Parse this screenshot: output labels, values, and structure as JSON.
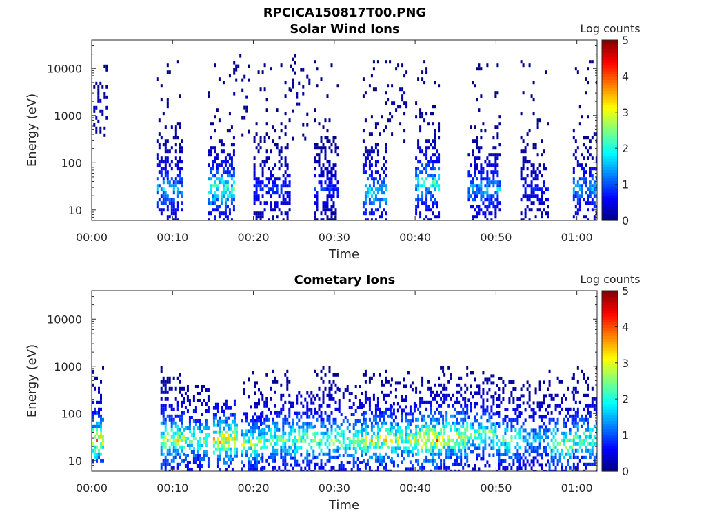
{
  "figure": {
    "title": "RPCICA150817T00.PNG"
  },
  "chart_data": [
    {
      "type": "heatmap",
      "title": "Solar Wind Ions",
      "xlabel": "Time",
      "ylabel": "Energy (eV)",
      "x_ticks": [
        "00:00",
        "00:10",
        "00:20",
        "00:30",
        "00:40",
        "00:50",
        "01:00"
      ],
      "x_range_min": [
        0,
        62.5
      ],
      "y_scale": "log",
      "y_ticks": [
        "10",
        "100",
        "1000",
        "10000"
      ],
      "y_range": [
        6,
        40000
      ],
      "colorbar": {
        "label": "Log counts",
        "range": [
          0,
          5
        ],
        "ticks": [
          "0",
          "1",
          "2",
          "3",
          "4",
          "5"
        ],
        "colormap": "jet"
      },
      "legend": "none",
      "grid": false,
      "bursts": [
        {
          "start_min": 0.2,
          "end_min": 1.8,
          "e_low": 300,
          "e_high": 12000,
          "peak_e": 1500,
          "peak_log": 0.4,
          "density": 0.35
        },
        {
          "start_min": 8.0,
          "end_min": 11.3,
          "e_low": 6,
          "e_high": 15000,
          "peak_e": 30,
          "peak_log": 1.9,
          "density": 0.62
        },
        {
          "start_min": 14.4,
          "end_min": 17.5,
          "e_low": 6,
          "e_high": 15000,
          "peak_e": 30,
          "peak_log": 2.7,
          "density": 0.62
        },
        {
          "start_min": 17.5,
          "end_min": 19.5,
          "e_low": 300,
          "e_high": 20000,
          "peak_e": 3000,
          "peak_log": 0.3,
          "density": 0.15
        },
        {
          "start_min": 20.0,
          "end_min": 24.5,
          "e_low": 6,
          "e_high": 15000,
          "peak_e": 30,
          "peak_log": 1.0,
          "density": 0.55
        },
        {
          "start_min": 24.5,
          "end_min": 27.0,
          "e_low": 300,
          "e_high": 20000,
          "peak_e": 3000,
          "peak_log": 0.3,
          "density": 0.15
        },
        {
          "start_min": 27.5,
          "end_min": 30.5,
          "e_low": 6,
          "e_high": 15000,
          "peak_e": 30,
          "peak_log": 1.0,
          "density": 0.6
        },
        {
          "start_min": 33.5,
          "end_min": 36.5,
          "e_low": 6,
          "e_high": 15000,
          "peak_e": 25,
          "peak_log": 2.2,
          "density": 0.6
        },
        {
          "start_min": 36.5,
          "end_min": 39.0,
          "e_low": 300,
          "e_high": 15000,
          "peak_e": 3000,
          "peak_log": 0.3,
          "density": 0.15
        },
        {
          "start_min": 40.0,
          "end_min": 43.0,
          "e_low": 6,
          "e_high": 15000,
          "peak_e": 40,
          "peak_log": 2.6,
          "density": 0.62
        },
        {
          "start_min": 46.5,
          "end_min": 50.5,
          "e_low": 6,
          "e_high": 15000,
          "peak_e": 30,
          "peak_log": 1.8,
          "density": 0.55
        },
        {
          "start_min": 53.0,
          "end_min": 56.5,
          "e_low": 6,
          "e_high": 15000,
          "peak_e": 30,
          "peak_log": 0.8,
          "density": 0.5
        },
        {
          "start_min": 59.5,
          "end_min": 62.5,
          "e_low": 6,
          "e_high": 15000,
          "peak_e": 30,
          "peak_log": 1.8,
          "density": 0.6
        }
      ]
    },
    {
      "type": "heatmap",
      "title": "Cometary Ions",
      "xlabel": "Time",
      "ylabel": "Energy (eV)",
      "x_ticks": [
        "00:00",
        "00:10",
        "00:20",
        "00:30",
        "00:40",
        "00:50",
        "01:00"
      ],
      "x_range_min": [
        0,
        62.5
      ],
      "y_scale": "log",
      "y_ticks": [
        "10",
        "100",
        "1000",
        "10000"
      ],
      "y_range": [
        6,
        40000
      ],
      "colorbar": {
        "label": "Log counts",
        "range": [
          0,
          5
        ],
        "ticks": [
          "0",
          "1",
          "2",
          "3",
          "4",
          "5"
        ],
        "colormap": "jet"
      },
      "legend": "none",
      "grid": false,
      "bursts": [
        {
          "start_min": 0.0,
          "end_min": 1.5,
          "e_low": 10,
          "e_high": 1000,
          "peak_e": 30,
          "peak_log": 4.0,
          "density": 0.7
        },
        {
          "start_min": 8.5,
          "end_min": 11.5,
          "e_low": 6,
          "e_high": 1000,
          "peak_e": 30,
          "peak_log": 3.5,
          "density": 0.65
        },
        {
          "start_min": 11.5,
          "end_min": 14.5,
          "e_low": 6,
          "e_high": 400,
          "peak_e": 30,
          "peak_log": 3.0,
          "density": 0.6
        },
        {
          "start_min": 15.0,
          "end_min": 18.0,
          "e_low": 6,
          "e_high": 200,
          "peak_e": 30,
          "peak_log": 4.0,
          "density": 0.65
        },
        {
          "start_min": 18.5,
          "end_min": 21.0,
          "e_low": 6,
          "e_high": 800,
          "peak_e": 25,
          "peak_log": 3.2,
          "density": 0.6
        },
        {
          "start_min": 21.0,
          "end_min": 24.5,
          "e_low": 6,
          "e_high": 1000,
          "peak_e": 30,
          "peak_log": 3.0,
          "density": 0.6
        },
        {
          "start_min": 24.5,
          "end_min": 27.5,
          "e_low": 6,
          "e_high": 300,
          "peak_e": 30,
          "peak_log": 3.2,
          "density": 0.55
        },
        {
          "start_min": 27.5,
          "end_min": 30.5,
          "e_low": 6,
          "e_high": 1000,
          "peak_e": 30,
          "peak_log": 3.0,
          "density": 0.6
        },
        {
          "start_min": 30.5,
          "end_min": 33.5,
          "e_low": 6,
          "e_high": 400,
          "peak_e": 30,
          "peak_log": 3.3,
          "density": 0.55
        },
        {
          "start_min": 33.5,
          "end_min": 37.0,
          "e_low": 6,
          "e_high": 1000,
          "peak_e": 30,
          "peak_log": 3.6,
          "density": 0.6
        },
        {
          "start_min": 37.0,
          "end_min": 40.0,
          "e_low": 6,
          "e_high": 800,
          "peak_e": 30,
          "peak_log": 3.4,
          "density": 0.6
        },
        {
          "start_min": 40.0,
          "end_min": 43.5,
          "e_low": 6,
          "e_high": 1000,
          "peak_e": 30,
          "peak_log": 4.1,
          "density": 0.65
        },
        {
          "start_min": 43.5,
          "end_min": 46.5,
          "e_low": 6,
          "e_high": 1000,
          "peak_e": 35,
          "peak_log": 3.8,
          "density": 0.65
        },
        {
          "start_min": 46.5,
          "end_min": 50.0,
          "e_low": 6,
          "e_high": 800,
          "peak_e": 40,
          "peak_log": 3.0,
          "density": 0.6
        },
        {
          "start_min": 50.0,
          "end_min": 53.0,
          "e_low": 6,
          "e_high": 600,
          "peak_e": 30,
          "peak_log": 2.8,
          "density": 0.55
        },
        {
          "start_min": 53.0,
          "end_min": 56.5,
          "e_low": 6,
          "e_high": 500,
          "peak_e": 30,
          "peak_log": 2.0,
          "density": 0.5
        },
        {
          "start_min": 56.5,
          "end_min": 59.5,
          "e_low": 6,
          "e_high": 1000,
          "peak_e": 25,
          "peak_log": 3.2,
          "density": 0.55
        },
        {
          "start_min": 59.5,
          "end_min": 62.5,
          "e_low": 6,
          "e_high": 1000,
          "peak_e": 30,
          "peak_log": 3.0,
          "density": 0.6
        }
      ]
    }
  ]
}
